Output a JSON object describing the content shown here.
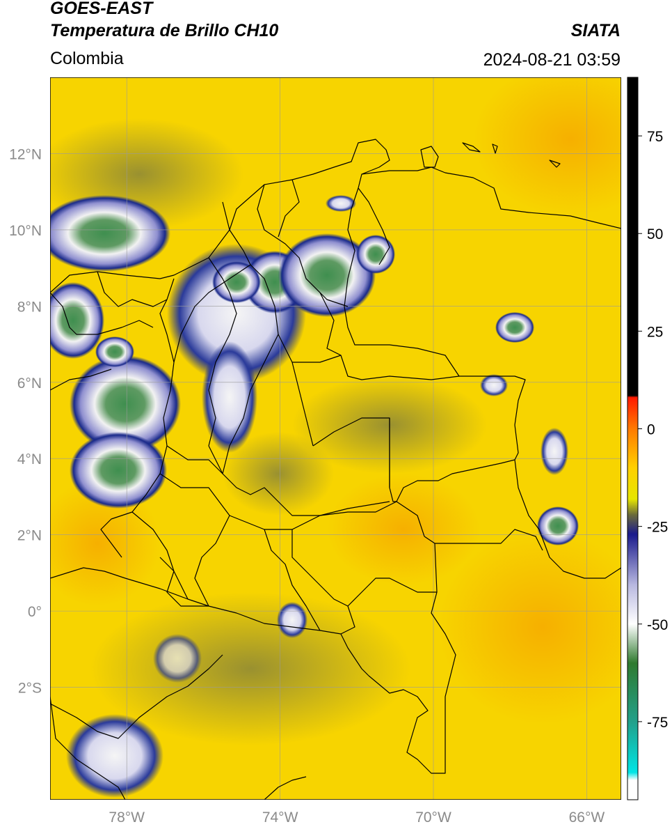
{
  "header": {
    "satellite": "GOES-EAST",
    "product": "Temperatura de Brillo CH10",
    "region": "Colombia",
    "agency": "SIATA",
    "timestamp": "2024-08-21 03:59"
  },
  "map": {
    "lat_labels": [
      "12°N",
      "10°N",
      "8°N",
      "6°N",
      "4°N",
      "2°N",
      "0°",
      "2°S"
    ],
    "lon_labels": [
      "78°W",
      "74°W",
      "70°W",
      "66°W"
    ],
    "lat_values": [
      12,
      10,
      8,
      6,
      4,
      2,
      0,
      -2
    ],
    "lon_values": [
      -78,
      -74,
      -70,
      -66
    ],
    "colors": {
      "background_warm": "#f7d400",
      "warm_orange": "#f5a800",
      "cloud_navy": "#1a2a8a",
      "cloud_white": "#f2f2f2",
      "cloud_green": "#3f8f4f",
      "border": "#000000",
      "grid": "#9a9a9a"
    }
  },
  "colorbar": {
    "tick_labels": [
      "75",
      "50",
      "25",
      "0",
      "-25",
      "-50",
      "-75"
    ],
    "tick_values": [
      75,
      50,
      25,
      0,
      -25,
      -50,
      -75
    ],
    "range": [
      -95,
      90
    ],
    "stops": [
      {
        "v": 90,
        "c": "#000000"
      },
      {
        "v": 8.5,
        "c": "#000000"
      },
      {
        "v": 8,
        "c": "#ff1a00"
      },
      {
        "v": 0,
        "c": "#ff7a00"
      },
      {
        "v": -10,
        "c": "#ffd000"
      },
      {
        "v": -18,
        "c": "#e6e600"
      },
      {
        "v": -22,
        "c": "#6b6b3a"
      },
      {
        "v": -27,
        "c": "#1a1a8c"
      },
      {
        "v": -40,
        "c": "#b8b8e0"
      },
      {
        "v": -50,
        "c": "#ffffff"
      },
      {
        "v": -60,
        "c": "#2f7a2f"
      },
      {
        "v": -75,
        "c": "#22a08a"
      },
      {
        "v": -88,
        "c": "#00e5e5"
      },
      {
        "v": -90,
        "c": "#ffffff"
      },
      {
        "v": -95,
        "c": "#ffffff"
      }
    ]
  }
}
